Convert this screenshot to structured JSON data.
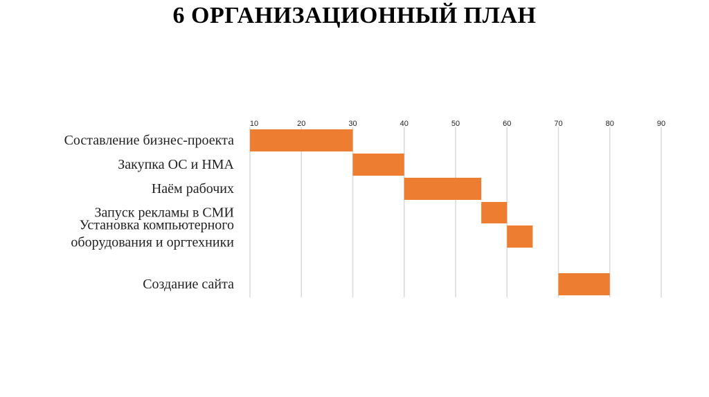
{
  "slide": {
    "title": "6 ОРГАНИЗАЦИОННЫЙ ПЛАН"
  },
  "chart_data": {
    "type": "bar",
    "subtype": "gantt",
    "title": "",
    "xlabel": "",
    "ylabel": "",
    "xlim": [
      10,
      90
    ],
    "x_ticks": [
      10,
      20,
      30,
      40,
      50,
      60,
      70,
      80,
      90
    ],
    "grid": true,
    "legend": "none",
    "bar_color": "#ED7D31",
    "grid_color": "#d9d9d9",
    "tasks": [
      {
        "label_lines": [
          "Составление бизнес-проекта"
        ],
        "start": 10,
        "end": 30
      },
      {
        "label_lines": [
          "Закупка ОС и НМА"
        ],
        "start": 30,
        "end": 40
      },
      {
        "label_lines": [
          "Наём рабочих"
        ],
        "start": 40,
        "end": 55
      },
      {
        "label_lines": [
          "Запуск рекламы в СМИ"
        ],
        "start": 55,
        "end": 60
      },
      {
        "label_lines": [
          "Установка компьютерного",
          "оборудования и оргтехники"
        ],
        "start": 60,
        "end": 65
      },
      {
        "label_lines": [
          "Создание сайта"
        ],
        "start": 70,
        "end": 80
      }
    ]
  }
}
